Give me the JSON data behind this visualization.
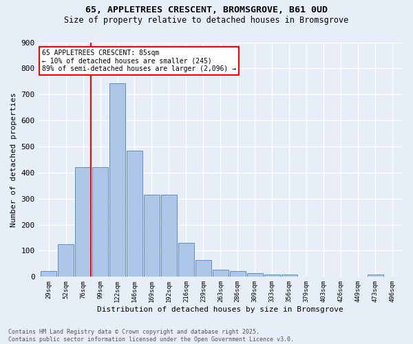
{
  "title1": "65, APPLETREES CRESCENT, BROMSGROVE, B61 0UD",
  "title2": "Size of property relative to detached houses in Bromsgrove",
  "xlabel": "Distribution of detached houses by size in Bromsgrove",
  "ylabel": "Number of detached properties",
  "bar_values": [
    22,
    125,
    420,
    420,
    743,
    485,
    315,
    315,
    130,
    65,
    28,
    22,
    15,
    10,
    10,
    0,
    0,
    0,
    0,
    8,
    0
  ],
  "bin_labels": [
    "29sqm",
    "52sqm",
    "76sqm",
    "99sqm",
    "122sqm",
    "146sqm",
    "169sqm",
    "192sqm",
    "216sqm",
    "239sqm",
    "263sqm",
    "286sqm",
    "309sqm",
    "333sqm",
    "356sqm",
    "379sqm",
    "403sqm",
    "426sqm",
    "449sqm",
    "473sqm",
    "496sqm"
  ],
  "bar_color": "#aec6e8",
  "bar_edge_color": "#5a8fc4",
  "vline_x": 2,
  "vline_color": "red",
  "annotation_text": "65 APPLETREES CRESCENT: 85sqm\n← 10% of detached houses are smaller (245)\n89% of semi-detached houses are larger (2,096) →",
  "annotation_box_color": "white",
  "annotation_box_edge": "red",
  "ylim": [
    0,
    900
  ],
  "yticks": [
    0,
    100,
    200,
    300,
    400,
    500,
    600,
    700,
    800,
    900
  ],
  "footnote": "Contains HM Land Registry data © Crown copyright and database right 2025.\nContains public sector information licensed under the Open Government Licence v3.0.",
  "bg_color": "#e8eef8",
  "grid_color": "white"
}
